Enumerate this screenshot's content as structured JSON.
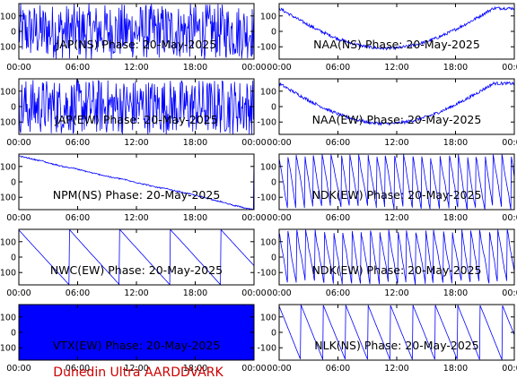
{
  "footer": "Dunedin Ultra AARDDVARK",
  "colors": {
    "trace": "#0000ff",
    "footer": "#cc0000",
    "axes": "#000000"
  },
  "x_ticks": [
    "00:00",
    "06:00",
    "12:00",
    "18:00",
    "00:00"
  ],
  "y_ticks": [
    "100",
    "0",
    "-100"
  ],
  "chart_data": [
    {
      "type": "line",
      "title": "JAP(NS) Phase: 20-May-2025",
      "pattern": "dense",
      "xlim": [
        "00:00",
        "24:00"
      ],
      "ylim": [
        -180,
        180
      ]
    },
    {
      "type": "line",
      "title": "NAA(NS) Phase: 20-May-2025",
      "pattern": "slow",
      "xlim": [
        "00:00",
        "24:00"
      ],
      "ylim": [
        -180,
        180
      ]
    },
    {
      "type": "line",
      "title": "JAP(EW) Phase: 20-May-2025",
      "pattern": "dense",
      "xlim": [
        "00:00",
        "24:00"
      ],
      "ylim": [
        -180,
        180
      ]
    },
    {
      "type": "line",
      "title": "NAA(EW) Phase: 20-May-2025",
      "pattern": "slow",
      "xlim": [
        "00:00",
        "24:00"
      ],
      "ylim": [
        -180,
        180
      ]
    },
    {
      "type": "line",
      "title": "NPM(NS) Phase: 20-May-2025",
      "pattern": "drift",
      "xlim": [
        "00:00",
        "24:00"
      ],
      "ylim": [
        -180,
        180
      ]
    },
    {
      "type": "line",
      "title": "NDK(EW) Phase: 20-May-2025",
      "pattern": "fastwrap",
      "xlim": [
        "00:00",
        "24:00"
      ],
      "ylim": [
        -180,
        180
      ]
    },
    {
      "type": "line",
      "title": "NWC(EW) Phase: 20-May-2025",
      "pattern": "sawtooth",
      "xlim": [
        "00:00",
        "24:00"
      ],
      "ylim": [
        -180,
        180
      ]
    },
    {
      "type": "line",
      "title": "NDK(EW) Phase: 20-May-2025",
      "pattern": "fastwrap",
      "xlim": [
        "00:00",
        "24:00"
      ],
      "ylim": [
        -180,
        180
      ]
    },
    {
      "type": "line",
      "title": "VTX(EW) Phase: 20-May-2025",
      "pattern": "solid",
      "xlim": [
        "00:00",
        "24:00"
      ],
      "ylim": [
        -180,
        180
      ]
    },
    {
      "type": "line",
      "title": "NLK(NS) Phase: 20-May-2025",
      "pattern": "sawtooth2",
      "xlim": [
        "00:00",
        "24:00"
      ],
      "ylim": [
        -180,
        180
      ]
    }
  ]
}
